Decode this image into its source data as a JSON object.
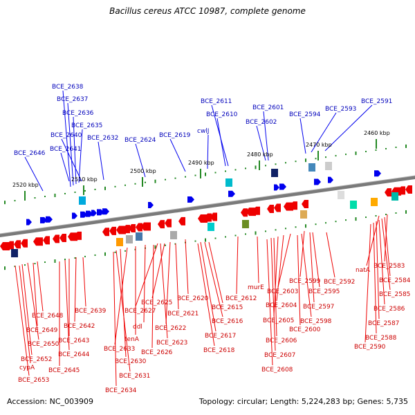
{
  "title": "Bacillus cereus ATCC 10987, complete genome",
  "footer": {
    "accession": "Accession: NC_003909",
    "summary": "Topology: circular; Length: 5,224,283 bp; Genes: 5,735"
  },
  "colors": {
    "forward": "#0000ee",
    "reverse": "#ee0000",
    "forward_label": "#0000bb",
    "reverse_label": "#cc0000",
    "backbone": "#808080",
    "tick": "#228822"
  },
  "scale": {
    "ticks": [
      {
        "label": "2520 kbp"
      },
      {
        "label": "2510 kbp"
      },
      {
        "label": "2500 kbp"
      },
      {
        "label": "2490 kbp"
      },
      {
        "label": "2480 kbp"
      },
      {
        "label": "2470 kbp"
      },
      {
        "label": "2460 kbp"
      }
    ]
  },
  "forward_genes": [
    "BCE_2638",
    "BCE_2637",
    "BCE_2636",
    "BCE_2635",
    "BCE_2640",
    "BCE_2632",
    "BCE_2641",
    "BCE_2646",
    "BCE_2624",
    "BCE_2619",
    "BCE_2611",
    "BCE_2610",
    "cwlJ",
    "BCE_2601",
    "BCE_2602",
    "BCE_2594",
    "BCE_2593",
    "BCE_2591"
  ],
  "reverse_genes": [
    "BCE_2583",
    "natA",
    "BCE_2584",
    "BCE_2585",
    "BCE_2586",
    "BCE_2587",
    "BCE_2588",
    "BCE_2590",
    "BCE_2592",
    "BCE_2599",
    "BCE_2595",
    "BCE_2603",
    "murE",
    "BCE_2612",
    "BCE_2597",
    "BCE_2604",
    "BCE_2598",
    "BCE_2600",
    "BCE_2605",
    "BCE_2606",
    "BCE_2607",
    "BCE_2608",
    "BCE_2620",
    "BCE_2615",
    "BCE_2616",
    "BCE_2617",
    "BCE_2618",
    "BCE_2625",
    "BCE_2621",
    "BCE_2627",
    "BCE_2622",
    "BCE_2623",
    "ddl",
    "BCE_2626",
    "tenA",
    "BCE_2633",
    "BCE_2630",
    "BCE_2631",
    "BCE_2634",
    "BCE_2639",
    "BCE_2642",
    "BCE_2643",
    "BCE_2644",
    "BCE_2645",
    "BCE_2648",
    "BCE_2649",
    "BCE_2650",
    "BCE_2652",
    "cypA",
    "BCE_2653"
  ]
}
